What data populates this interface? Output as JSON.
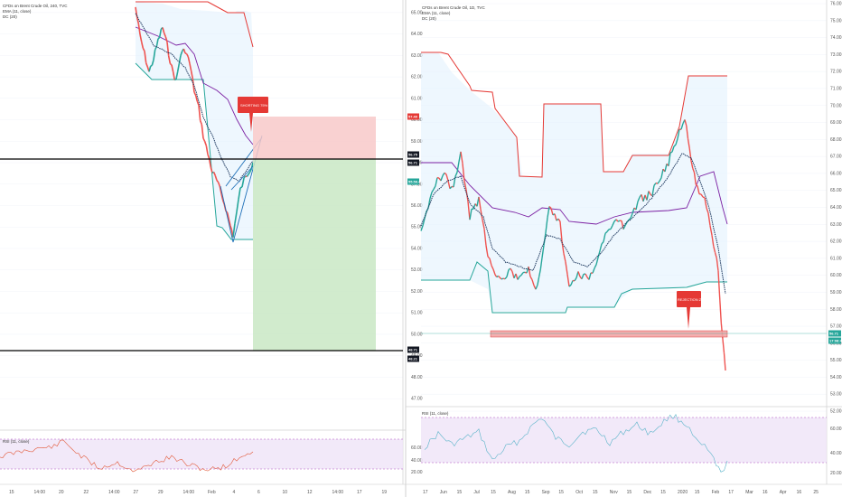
{
  "left_panel": {
    "legend": [
      "CFDs on Brent Crude Oil, 240, TVC",
      "EMA (11, close)",
      "DC (20)"
    ],
    "callout": "SHORTING 75% (R:3)",
    "rsi_legend": "RSI (11, close)",
    "x_ticks": [
      "15",
      "14:00",
      "20",
      "22",
      "14:00",
      "27",
      "29",
      "14:00",
      "Feb",
      "4",
      "6",
      "10",
      "12",
      "14:00",
      "17",
      "19"
    ],
    "price_ticks": [
      "65.00",
      "64.00",
      "63.00",
      "62.00",
      "61.00",
      "60.00",
      "59.00",
      "58.00",
      "57.00",
      "56.00",
      "55.00",
      "54.00",
      "53.00",
      "52.00",
      "51.00",
      "50.00",
      "49.00",
      "48.00",
      "47.00"
    ],
    "rsi_ticks": [
      "60.00",
      "40.00",
      "20.00"
    ],
    "side_labels": [
      {
        "text": "57.40",
        "color": "#e53935"
      },
      {
        "text": "56.75",
        "color": "#131722"
      },
      {
        "text": "56.71",
        "color": "#131722"
      },
      {
        "text": "55.59.49",
        "color": "#26a69a"
      },
      {
        "text": "48.71",
        "color": "#131722"
      },
      {
        "text": "48.21",
        "color": "#131722"
      }
    ]
  },
  "right_panel": {
    "legend": [
      "CFDs on Brent Crude Oil, 1D, TVC",
      "EMA (11, close)",
      "DC (20)"
    ],
    "callout": "REJECTION ZONE",
    "rsi_legend": "RSI (11, close)",
    "x_ticks": [
      "17",
      "Jun",
      "15",
      "Jul",
      "15",
      "Aug",
      "15",
      "Sep",
      "15",
      "Oct",
      "15",
      "Nov",
      "15",
      "Dec",
      "15",
      "2020",
      "15",
      "Feb",
      "17",
      "Mar",
      "16",
      "Apr",
      "16",
      "25"
    ],
    "price_ticks": [
      "76.00",
      "75.00",
      "74.00",
      "73.00",
      "72.00",
      "71.00",
      "70.00",
      "69.00",
      "68.00",
      "67.00",
      "66.00",
      "65.00",
      "64.00",
      "63.00",
      "62.00",
      "61.00",
      "60.00",
      "59.00",
      "58.00",
      "57.00",
      "56.00",
      "55.00",
      "54.00",
      "53.00",
      "52.00"
    ],
    "rsi_ticks": [
      "60.00",
      "40.00",
      "20.00"
    ],
    "side_labels": [
      {
        "text": "56.71",
        "color": "#26a69a"
      },
      {
        "text": "17:08:49",
        "color": "#26a69a"
      }
    ]
  },
  "chart_data": [
    {
      "type": "line",
      "title": "CFDs on Brent Crude Oil, 240, TVC",
      "x": [
        "Jan 15",
        "Jan 17",
        "Jan 20",
        "Jan 22",
        "Jan 24",
        "Jan 27",
        "Jan 29",
        "Jan 31",
        "Feb 3",
        "Feb 4",
        "Feb 5",
        "Feb 6"
      ],
      "series": [
        {
          "name": "CFDs on Brent Crude Oil, 240, TVC",
          "values": [
            65.2,
            63.5,
            62.1,
            61.9,
            61.0,
            59.2,
            58.6,
            56.1,
            54.0,
            53.8,
            55.8,
            56.7
          ]
        },
        {
          "name": "EMA (11, close)",
          "values": [
            65.4,
            64.0,
            62.6,
            62.3,
            61.6,
            60.1,
            59.3,
            57.2,
            55.5,
            55.0,
            55.6,
            56.3
          ]
        }
      ],
      "ylim": [
        46.5,
        65.5
      ]
    },
    {
      "type": "line",
      "title": "CFDs on Brent Crude Oil, 1D, TVC",
      "x": [
        "Jun",
        "Jul",
        "Aug",
        "Sep",
        "Oct",
        "Nov",
        "Dec",
        "2020",
        "Feb"
      ],
      "series": [
        {
          "name": "CFDs on Brent Crude Oil, 1D, TVC",
          "values": [
            62.0,
            64.5,
            59.5,
            60.5,
            59.0,
            62.5,
            64.0,
            66.0,
            54.5
          ]
        },
        {
          "name": "EMA (11, close)",
          "values": [
            62.5,
            63.5,
            60.5,
            61.0,
            59.5,
            61.5,
            63.5,
            65.5,
            57.5
          ]
        }
      ],
      "ylim": [
        52,
        76
      ]
    }
  ]
}
